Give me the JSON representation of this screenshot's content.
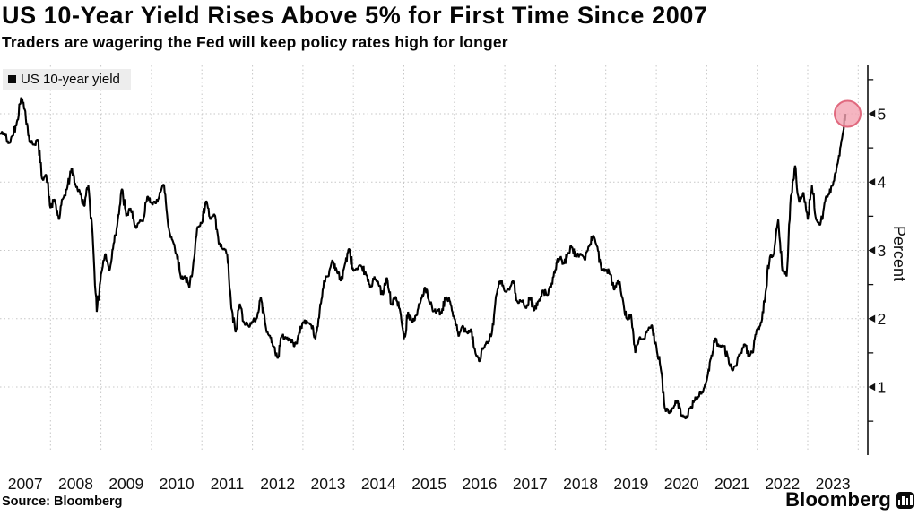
{
  "header": {
    "title": "US 10-Year Yield Rises Above 5% for First Time Since 2007",
    "subtitle": "Traders are wagering the Fed will keep policy rates high for longer"
  },
  "legend": {
    "label": "US 10-year yield"
  },
  "source_label": "Source: Bloomberg",
  "branding": {
    "wordmark": "Bloomberg",
    "icon": "bloomberg-bars-icon"
  },
  "colors": {
    "line": "#000000",
    "grid": "#c7c7c7",
    "axis": "#111111",
    "highlight_fill": "#f2a3b1",
    "highlight_stroke": "#e0697e",
    "legend_bg": "#ededed",
    "text": "#050505"
  },
  "chart_data": {
    "type": "line",
    "title": "US 10-Year Yield Rises Above 5% for First Time Since 2007",
    "subtitle": "Traders are wagering the Fed will keep policy rates high for longer",
    "xlabel": "",
    "ylabel": "Percent",
    "grid": true,
    "legend_position": "top-left",
    "xlim": [
      2007,
      2024.19
    ],
    "ylim": [
      0,
      5.71
    ],
    "x_ticks": [
      2007,
      2008,
      2009,
      2010,
      2011,
      2012,
      2013,
      2014,
      2015,
      2016,
      2017,
      2018,
      2019,
      2020,
      2021,
      2022,
      2023
    ],
    "y_ticks": [
      1,
      2,
      3,
      4,
      5
    ],
    "y_minor_ticks": [
      0.5,
      1.5,
      2.5,
      3.5,
      4.5,
      5.5
    ],
    "highlight": {
      "x_year": 2023.79,
      "value": 5.0
    },
    "series": [
      {
        "name": "US 10-year yield",
        "start_year": 2007,
        "interval_months": 1,
        "values": [
          4.7,
          4.72,
          4.56,
          4.68,
          4.88,
          5.24,
          5.04,
          4.6,
          4.55,
          4.62,
          4.05,
          4.1,
          3.62,
          3.74,
          3.45,
          3.76,
          3.92,
          4.2,
          3.95,
          3.85,
          3.65,
          3.95,
          3.25,
          2.1,
          2.65,
          2.95,
          2.7,
          3.1,
          3.45,
          3.9,
          3.5,
          3.62,
          3.35,
          3.4,
          3.42,
          3.78,
          3.7,
          3.68,
          3.85,
          3.96,
          3.35,
          3.15,
          2.95,
          2.6,
          2.62,
          2.45,
          2.85,
          3.35,
          3.4,
          3.72,
          3.45,
          3.52,
          3.1,
          3.02,
          2.95,
          2.15,
          1.8,
          2.22,
          1.95,
          1.9,
          1.95,
          2.0,
          2.32,
          1.95,
          1.75,
          1.6,
          1.42,
          1.75,
          1.72,
          1.7,
          1.6,
          1.76,
          1.95,
          1.96,
          1.9,
          1.7,
          2.12,
          2.55,
          2.62,
          2.86,
          2.72,
          2.55,
          2.8,
          3.02,
          2.7,
          2.72,
          2.76,
          2.65,
          2.45,
          2.62,
          2.5,
          2.35,
          2.6,
          2.2,
          2.32,
          2.15,
          1.7,
          2.1,
          1.95,
          2.05,
          2.26,
          2.46,
          2.25,
          2.1,
          2.12,
          2.08,
          2.32,
          2.25,
          2.0,
          1.74,
          1.9,
          1.8,
          1.85,
          1.5,
          1.38,
          1.58,
          1.65,
          1.82,
          2.35,
          2.56,
          2.4,
          2.42,
          2.56,
          2.25,
          2.26,
          2.15,
          2.32,
          2.12,
          2.25,
          2.42,
          2.35,
          2.46,
          2.72,
          2.9,
          2.8,
          2.96,
          3.05,
          2.9,
          2.96,
          2.86,
          3.06,
          3.22,
          3.05,
          2.7,
          2.72,
          2.65,
          2.42,
          2.56,
          2.3,
          2.0,
          2.06,
          1.5,
          1.72,
          1.7,
          1.82,
          1.9,
          1.6,
          1.3,
          0.7,
          0.62,
          0.68,
          0.8,
          0.58,
          0.54,
          0.68,
          0.8,
          0.86,
          0.92,
          1.1,
          1.42,
          1.72,
          1.6,
          1.6,
          1.45,
          1.25,
          1.3,
          1.5,
          1.62,
          1.45,
          1.5,
          1.85,
          1.95,
          2.4,
          2.9,
          2.95,
          3.45,
          2.7,
          2.62,
          3.8,
          4.24,
          3.7,
          3.85,
          3.45,
          3.95,
          3.45,
          3.38,
          3.7,
          3.82,
          3.96,
          4.25,
          4.6,
          5.0
        ]
      }
    ]
  }
}
